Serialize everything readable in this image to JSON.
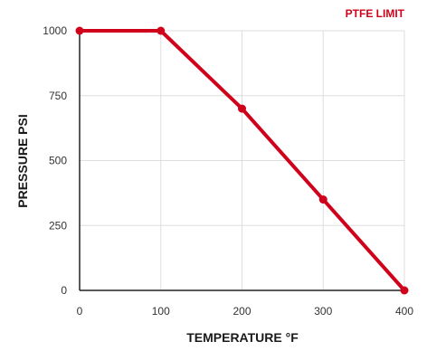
{
  "chart_data": {
    "type": "line",
    "title": "",
    "xlabel": "TEMPERATURE °F",
    "ylabel": "PRESSURE PSI",
    "x_ticks": [
      "0",
      "100",
      "200",
      "300",
      "400"
    ],
    "y_ticks": [
      "0",
      "250",
      "500",
      "750",
      "1000"
    ],
    "xlim": [
      0,
      400
    ],
    "ylim": [
      0,
      1000
    ],
    "grid": true,
    "legend_position": "top-right",
    "series": [
      {
        "name": "PTFE LIMIT",
        "color": "#d0021b",
        "x": [
          0,
          100,
          200,
          300,
          400
        ],
        "y": [
          1000,
          1000,
          700,
          350,
          0
        ]
      }
    ]
  }
}
